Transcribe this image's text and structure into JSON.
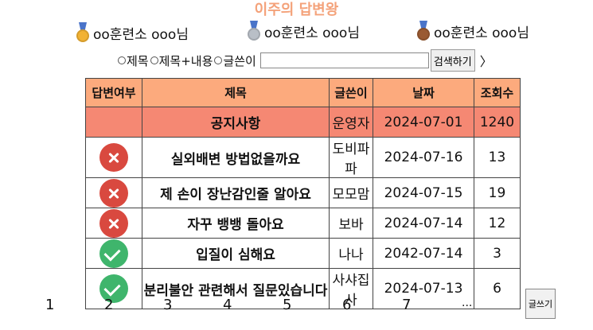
{
  "page_title": "이주의 답변왕",
  "ranking": [
    {
      "medal": "gold-medal-icon",
      "color": "#f2b233",
      "name": "oo훈련소 ooo님"
    },
    {
      "medal": "silver-medal-icon",
      "color": "#b9bfc7",
      "name": "oo훈련소 ooo님"
    },
    {
      "medal": "bronze-medal-icon",
      "color": "#9a5a32",
      "name": "oo훈련소 ooo님"
    }
  ],
  "search": {
    "options": [
      "제목",
      "제목+내용",
      "글쓴이"
    ],
    "input_value": "",
    "button_label": "검색하기",
    "next_arrow": "〉"
  },
  "table": {
    "headers": [
      "답변여부",
      "제목",
      "글쓴이",
      "날짜",
      "조회수"
    ],
    "notice": {
      "title": "공지사항",
      "author": "운영자",
      "date": "2024-07-01",
      "views": "1240"
    },
    "rows": [
      {
        "answered": false,
        "title": "실외배변 방법없을까요",
        "author": "도비파파",
        "date": "2024-07-16",
        "views": "13"
      },
      {
        "answered": false,
        "title": "제 손이 장난감인줄 알아요",
        "author": "모모맘",
        "date": "2024-07-15",
        "views": "19"
      },
      {
        "answered": false,
        "title": "자꾸 뱅뱅 돌아요",
        "author": "보바",
        "date": "2024-07-14",
        "views": "12"
      },
      {
        "answered": true,
        "title": "입질이 심해요",
        "author": "나나",
        "date": "2042-07-14",
        "views": "3"
      },
      {
        "answered": true,
        "title": "분리불안 관련해서 질문있습니다",
        "author": "사샤집사",
        "date": "2024-07-13",
        "views": "6"
      }
    ]
  },
  "pagination": [
    "1",
    "2",
    "3",
    "4",
    "5",
    "6",
    "7",
    "..."
  ],
  "write_button": "글쓰기"
}
